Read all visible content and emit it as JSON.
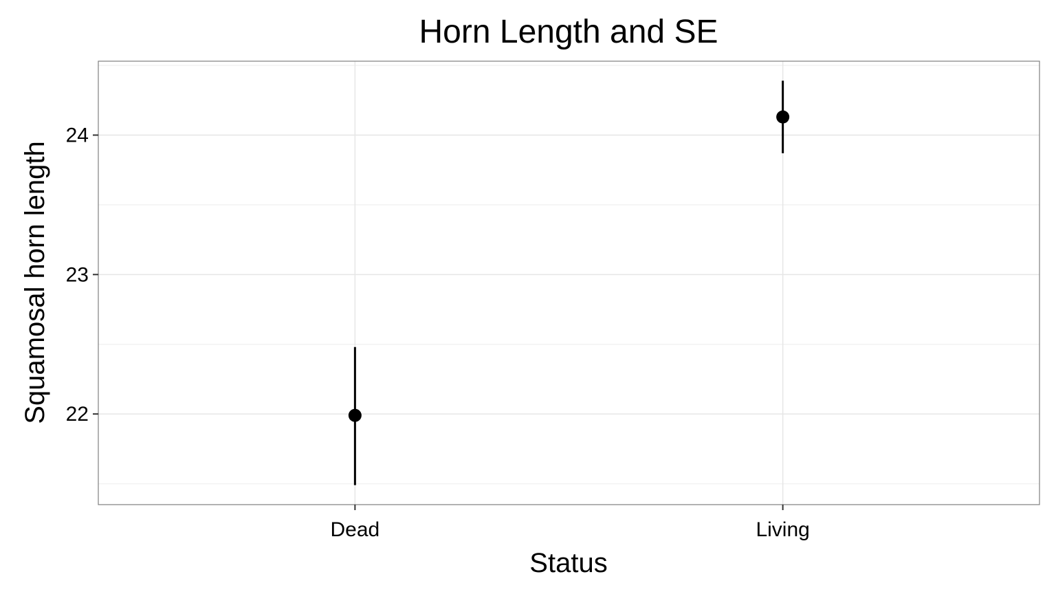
{
  "chart_data": {
    "type": "scatter",
    "title": "Horn Length and SE",
    "xlabel": "Status",
    "ylabel": "Squamosal horn length",
    "categories": [
      "Dead",
      "Living"
    ],
    "values": [
      21.99,
      24.13
    ],
    "error_low": [
      21.49,
      23.87
    ],
    "error_high": [
      22.48,
      24.39
    ],
    "ylim": [
      21.35,
      24.53
    ],
    "yticks": [
      22,
      23,
      24
    ],
    "ytick_labels": [
      "22",
      "23",
      "24"
    ],
    "grid": true,
    "colors": {
      "point": "#000000",
      "panel_border": "#7f7f7f",
      "grid_major": "#e6e6e6",
      "grid_minor": "#f2f2f2"
    }
  }
}
